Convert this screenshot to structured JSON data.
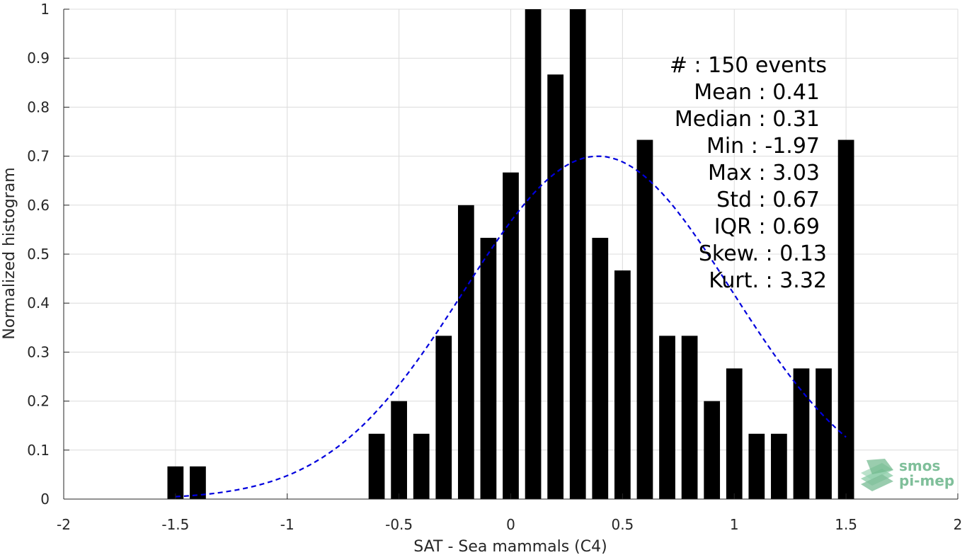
{
  "chart_data": {
    "type": "bar",
    "xlabel": "SAT - Sea mammals (C4)",
    "ylabel": "Normalized histogram",
    "xlim": [
      -2,
      2
    ],
    "ylim": [
      0,
      1
    ],
    "grid": true,
    "xticks": [
      -2,
      -1.5,
      -1,
      -0.5,
      0,
      0.5,
      1,
      1.5,
      2
    ],
    "xtick_labels": [
      "-2",
      "-1.5",
      "-1",
      "-0.5",
      "0",
      "0.5",
      "1",
      "1.5",
      "2"
    ],
    "yticks": [
      0,
      0.1,
      0.2,
      0.3,
      0.4,
      0.5,
      0.6,
      0.7,
      0.8,
      0.9,
      1
    ],
    "ytick_labels": [
      "0",
      "0.1",
      "0.2",
      "0.3",
      "0.4",
      "0.5",
      "0.6",
      "0.7",
      "0.8",
      "0.9",
      "1"
    ],
    "bin_width": 0.1,
    "bars": [
      {
        "x": -1.5,
        "value": 0.0667
      },
      {
        "x": -1.4,
        "value": 0.0667
      },
      {
        "x": -0.6,
        "value": 0.1333
      },
      {
        "x": -0.5,
        "value": 0.2
      },
      {
        "x": -0.4,
        "value": 0.1333
      },
      {
        "x": -0.3,
        "value": 0.3333
      },
      {
        "x": -0.2,
        "value": 0.6
      },
      {
        "x": -0.1,
        "value": 0.5333
      },
      {
        "x": 0.0,
        "value": 0.6667
      },
      {
        "x": 0.1,
        "value": 1.0
      },
      {
        "x": 0.2,
        "value": 0.8667
      },
      {
        "x": 0.3,
        "value": 1.0
      },
      {
        "x": 0.4,
        "value": 0.5333
      },
      {
        "x": 0.5,
        "value": 0.4667
      },
      {
        "x": 0.6,
        "value": 0.7333
      },
      {
        "x": 0.7,
        "value": 0.3333
      },
      {
        "x": 0.8,
        "value": 0.3333
      },
      {
        "x": 0.9,
        "value": 0.2
      },
      {
        "x": 1.0,
        "value": 0.2667
      },
      {
        "x": 1.1,
        "value": 0.1333
      },
      {
        "x": 1.2,
        "value": 0.1333
      },
      {
        "x": 1.3,
        "value": 0.2667
      },
      {
        "x": 1.4,
        "value": 0.2667
      },
      {
        "x": 1.5,
        "value": 0.7333
      }
    ],
    "bar_color": "#000000",
    "fit_curve": {
      "style": "dashed",
      "color": "#0000dd",
      "mean": 0.39,
      "std": 0.6,
      "peak": 0.7,
      "x_range": [
        -1.5,
        1.5
      ]
    },
    "stats_lines": [
      "#  : 150 events",
      "Mean : 0.41",
      "Median : 0.31",
      "Min : -1.97",
      "Max : 3.03",
      "Std : 0.67",
      "IQR : 0.69",
      "Skew. : 0.13",
      "Kurt. : 3.32"
    ]
  },
  "logo": {
    "line1": "smos",
    "line2": "pi-mep",
    "color": "#7fbf9a"
  }
}
